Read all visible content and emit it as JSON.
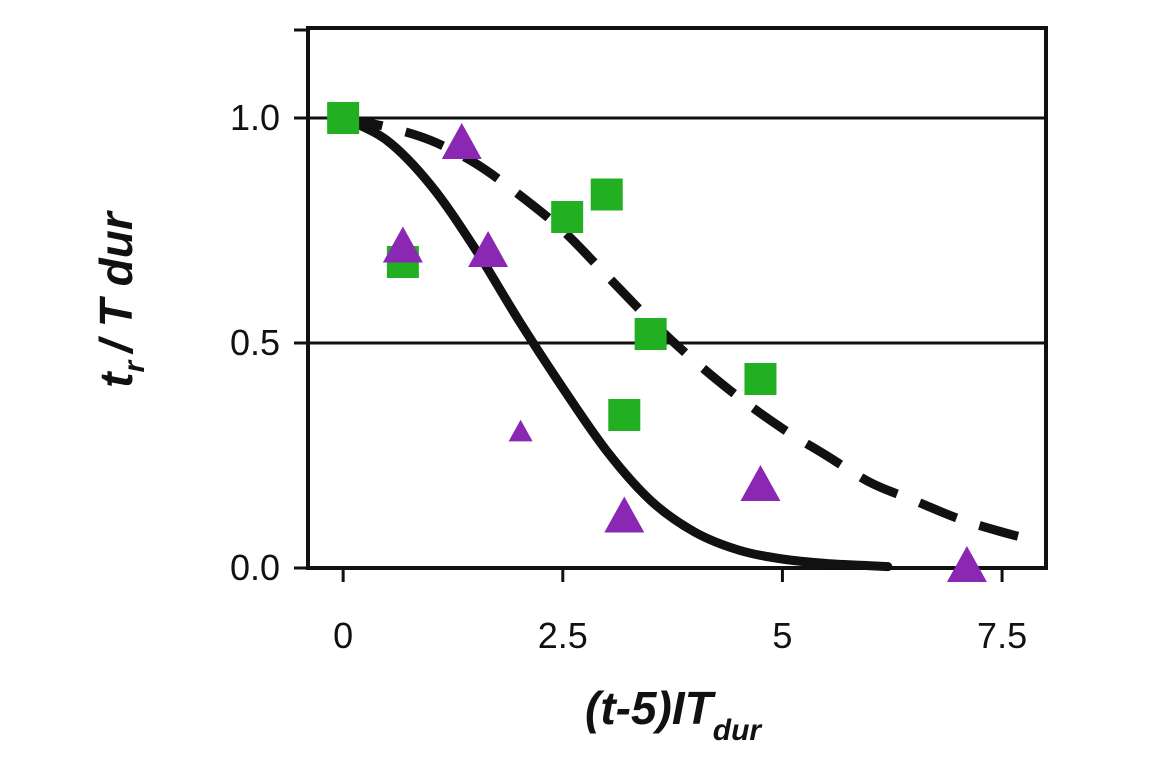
{
  "chart_data": {
    "type": "scatter",
    "xlabel": {
      "main": "(t-5)IT",
      "sub": "dur"
    },
    "ylabel": {
      "main1": "t",
      "sub": "r",
      "main2": "/ T dur"
    },
    "xlim": [
      -0.4,
      8.0
    ],
    "ylim": [
      0.0,
      1.2
    ],
    "x_ticks": [
      0,
      2.5,
      5,
      7.5
    ],
    "x_tick_labels": [
      "0",
      "2.5",
      "5",
      "7.5"
    ],
    "y_ticks": [
      0.0,
      0.5,
      1.0
    ],
    "y_tick_labels": [
      "0.0",
      "0.5",
      "1.0"
    ],
    "grid": {
      "horizontal": true,
      "lines_at": [
        0.5,
        1.0
      ]
    },
    "colors": {
      "square": "#22b022",
      "triangle": "#8a28b4",
      "curve": "#111111"
    },
    "series": [
      {
        "marker": "square",
        "points": [
          {
            "x": 0.0,
            "y": 1.0
          },
          {
            "x": 0.68,
            "y": 0.68
          },
          {
            "x": 2.55,
            "y": 0.78
          },
          {
            "x": 3.0,
            "y": 0.83
          },
          {
            "x": 3.5,
            "y": 0.52
          },
          {
            "x": 3.2,
            "y": 0.34
          },
          {
            "x": 4.75,
            "y": 0.42
          }
        ]
      },
      {
        "marker": "triangle",
        "points": [
          {
            "x": 0.68,
            "y": 0.71,
            "size": "large"
          },
          {
            "x": 1.35,
            "y": 0.94,
            "size": "large"
          },
          {
            "x": 1.65,
            "y": 0.7,
            "size": "large"
          },
          {
            "x": 2.02,
            "y": 0.3,
            "size": "small"
          },
          {
            "x": 3.2,
            "y": 0.11,
            "size": "large"
          },
          {
            "x": 4.75,
            "y": 0.18,
            "size": "large"
          },
          {
            "x": 7.1,
            "y": 0.0,
            "size": "large"
          }
        ]
      },
      {
        "style": "solid",
        "x": [
          0.0,
          0.5,
          1.0,
          1.5,
          2.0,
          2.5,
          3.0,
          3.5,
          4.0,
          4.5,
          5.0,
          5.5,
          6.0,
          6.2
        ],
        "y": [
          1.0,
          0.95,
          0.85,
          0.71,
          0.55,
          0.4,
          0.26,
          0.15,
          0.08,
          0.04,
          0.02,
          0.01,
          0.005,
          0.003
        ]
      },
      {
        "style": "dashed",
        "x": [
          0.0,
          0.5,
          1.0,
          1.5,
          2.0,
          2.5,
          3.0,
          3.5,
          4.0,
          4.5,
          5.0,
          5.5,
          6.0,
          6.5,
          7.0,
          7.5,
          7.9
        ],
        "y": [
          1.0,
          0.98,
          0.95,
          0.9,
          0.83,
          0.75,
          0.65,
          0.55,
          0.46,
          0.38,
          0.31,
          0.25,
          0.19,
          0.15,
          0.11,
          0.08,
          0.06
        ]
      }
    ]
  }
}
